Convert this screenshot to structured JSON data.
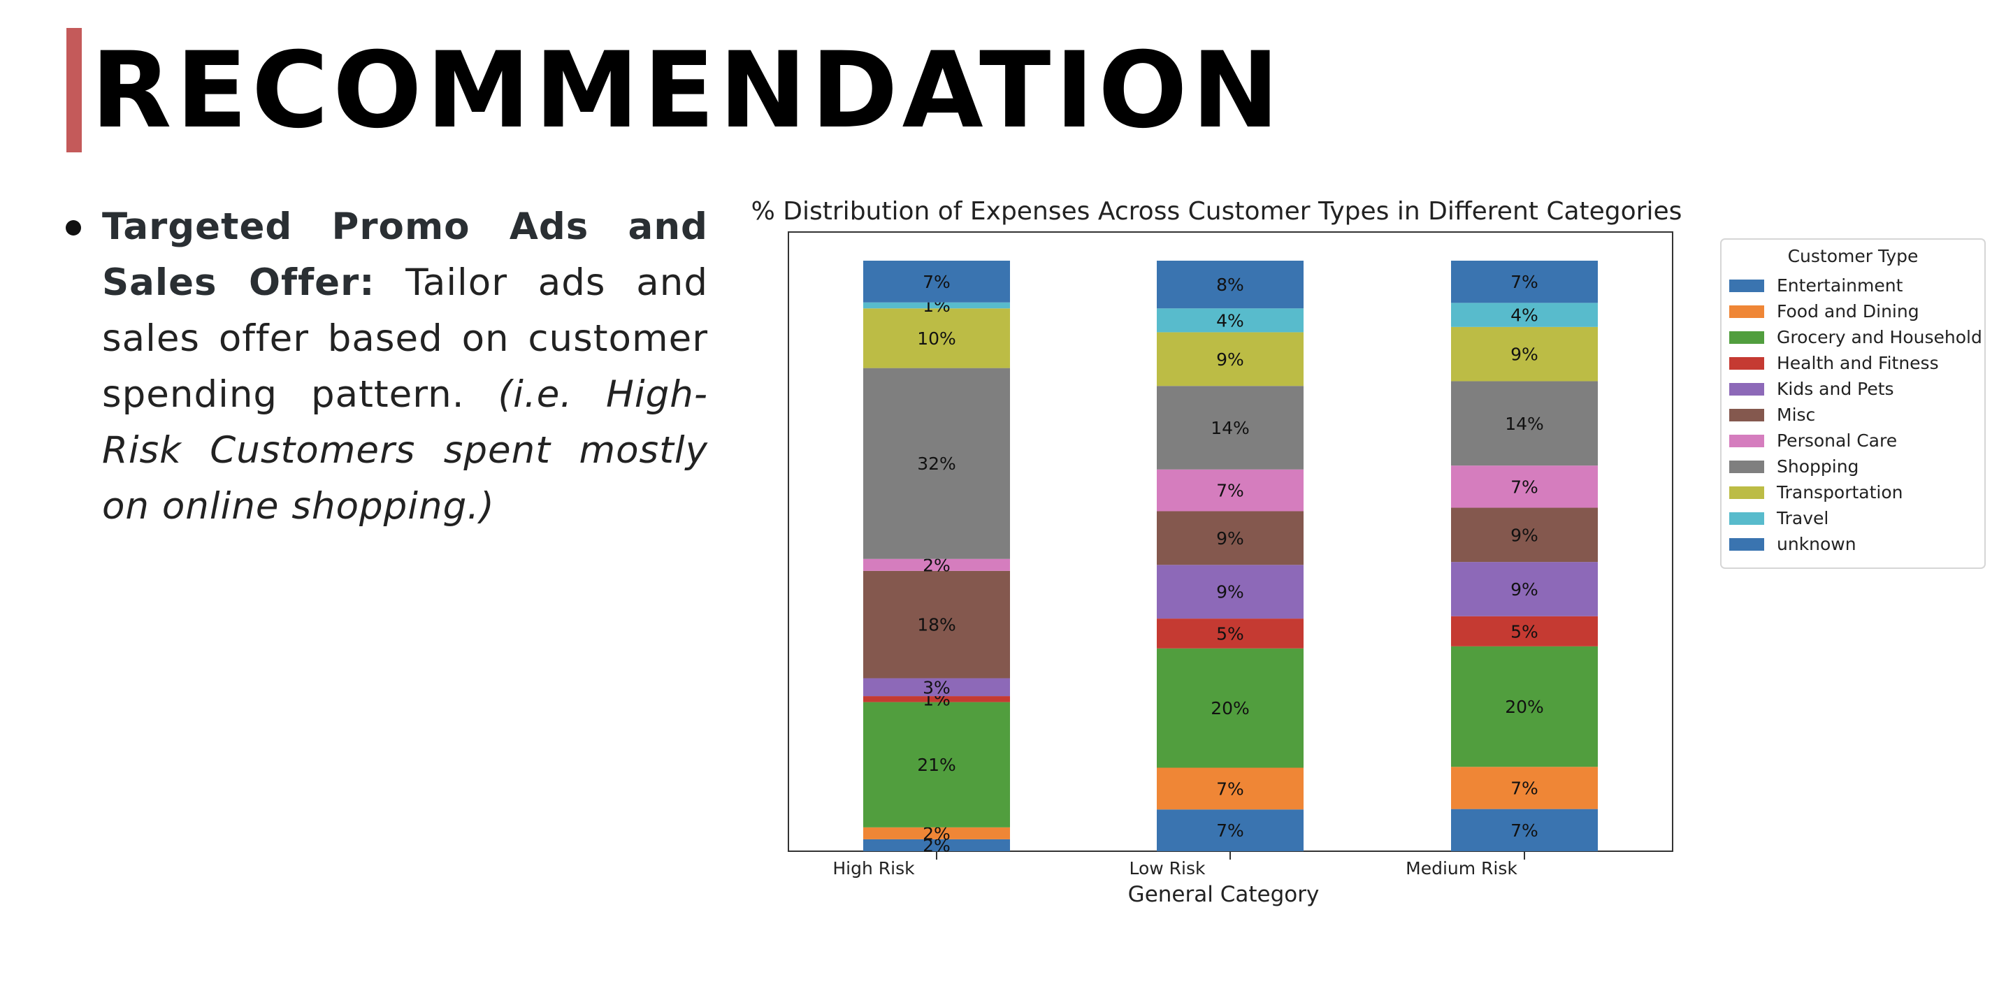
{
  "slide": {
    "title": "RECOMMENDATION",
    "accent_color": "#c45a5a",
    "bullets": [
      {
        "lead": "Targeted Promo Ads and Sales Offer:",
        "body": " Tailor ads and sales offer based on customer spending pattern. ",
        "note": "(i.e. High-Risk Customers spent mostly on online shopping.)"
      }
    ]
  },
  "chart_data": {
    "type": "bar",
    "stacked": true,
    "title": "% Distribution of Expenses Across Customer Types in Different Categories",
    "xlabel": "General Category",
    "ylabel": "",
    "categories": [
      "High Risk",
      "Low Risk",
      "Medium Risk"
    ],
    "legend_title": "Customer Type",
    "legend_position": "outside-right",
    "grid": false,
    "series": [
      {
        "name": "Entertainment",
        "color": "#3a74b0",
        "values": [
          2,
          7,
          7
        ]
      },
      {
        "name": "Food and Dining",
        "color": "#ef8636",
        "values": [
          2,
          7,
          7
        ]
      },
      {
        "name": "Grocery and Household",
        "color": "#519e3e",
        "values": [
          21,
          20,
          20
        ]
      },
      {
        "name": "Health and Fitness",
        "color": "#c53a32",
        "values": [
          1,
          5,
          5
        ]
      },
      {
        "name": "Kids and Pets",
        "color": "#8d69b8",
        "values": [
          3,
          9,
          9
        ]
      },
      {
        "name": "Misc",
        "color": "#84584e",
        "values": [
          18,
          9,
          9
        ]
      },
      {
        "name": "Personal Care",
        "color": "#d57dbe",
        "values": [
          2,
          7,
          7
        ]
      },
      {
        "name": "Shopping",
        "color": "#7f7f7f",
        "values": [
          32,
          14,
          14
        ]
      },
      {
        "name": "Transportation",
        "color": "#bcbc45",
        "values": [
          10,
          9,
          9
        ]
      },
      {
        "name": "Travel",
        "color": "#58bbcc",
        "values": [
          1,
          4,
          4
        ]
      },
      {
        "name": "unknown",
        "color": "#3a74b0",
        "values": [
          7,
          8,
          7
        ]
      }
    ],
    "data_label_suffix": "%"
  }
}
